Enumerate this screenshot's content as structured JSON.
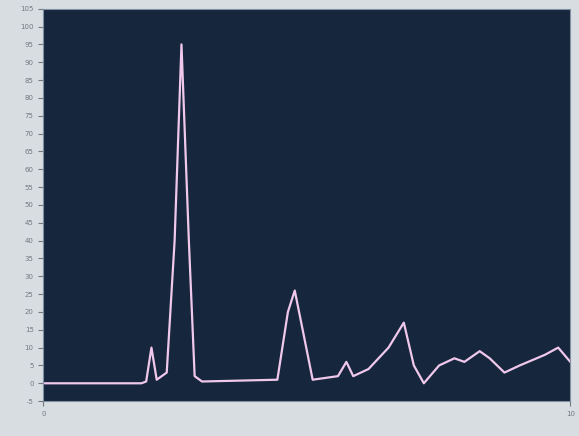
{
  "chart_data": {
    "type": "line",
    "x": [
      0,
      1.86,
      1.95,
      2.05,
      2.15,
      2.34,
      2.49,
      2.62,
      2.76,
      2.87,
      3.01,
      4.44,
      4.64,
      4.77,
      4.92,
      5.11,
      5.59,
      5.75,
      5.88,
      6.17,
      6.55,
      6.84,
      7.03,
      7.22,
      7.51,
      7.8,
      7.99,
      8.28,
      8.47,
      8.75,
      9.04,
      9.52,
      9.77,
      10
    ],
    "values": [
      0,
      0,
      0.5,
      10,
      1,
      3,
      40,
      95,
      40,
      2,
      0.5,
      1,
      20,
      26,
      15,
      1,
      2,
      6,
      2,
      4,
      10,
      17,
      5,
      0,
      5,
      7,
      6,
      9,
      7,
      3,
      5,
      8,
      10,
      6
    ],
    "color": "#f0c8ec",
    "xlim": [
      0,
      10
    ],
    "xticks": [
      0,
      10
    ],
    "ylim": [
      -5,
      105
    ],
    "yticks": [
      -5,
      0,
      5,
      10,
      15,
      20,
      25,
      30,
      35,
      40,
      45,
      50,
      55,
      60,
      65,
      70,
      75,
      80,
      85,
      90,
      95,
      100,
      105
    ],
    "grid": false
  }
}
